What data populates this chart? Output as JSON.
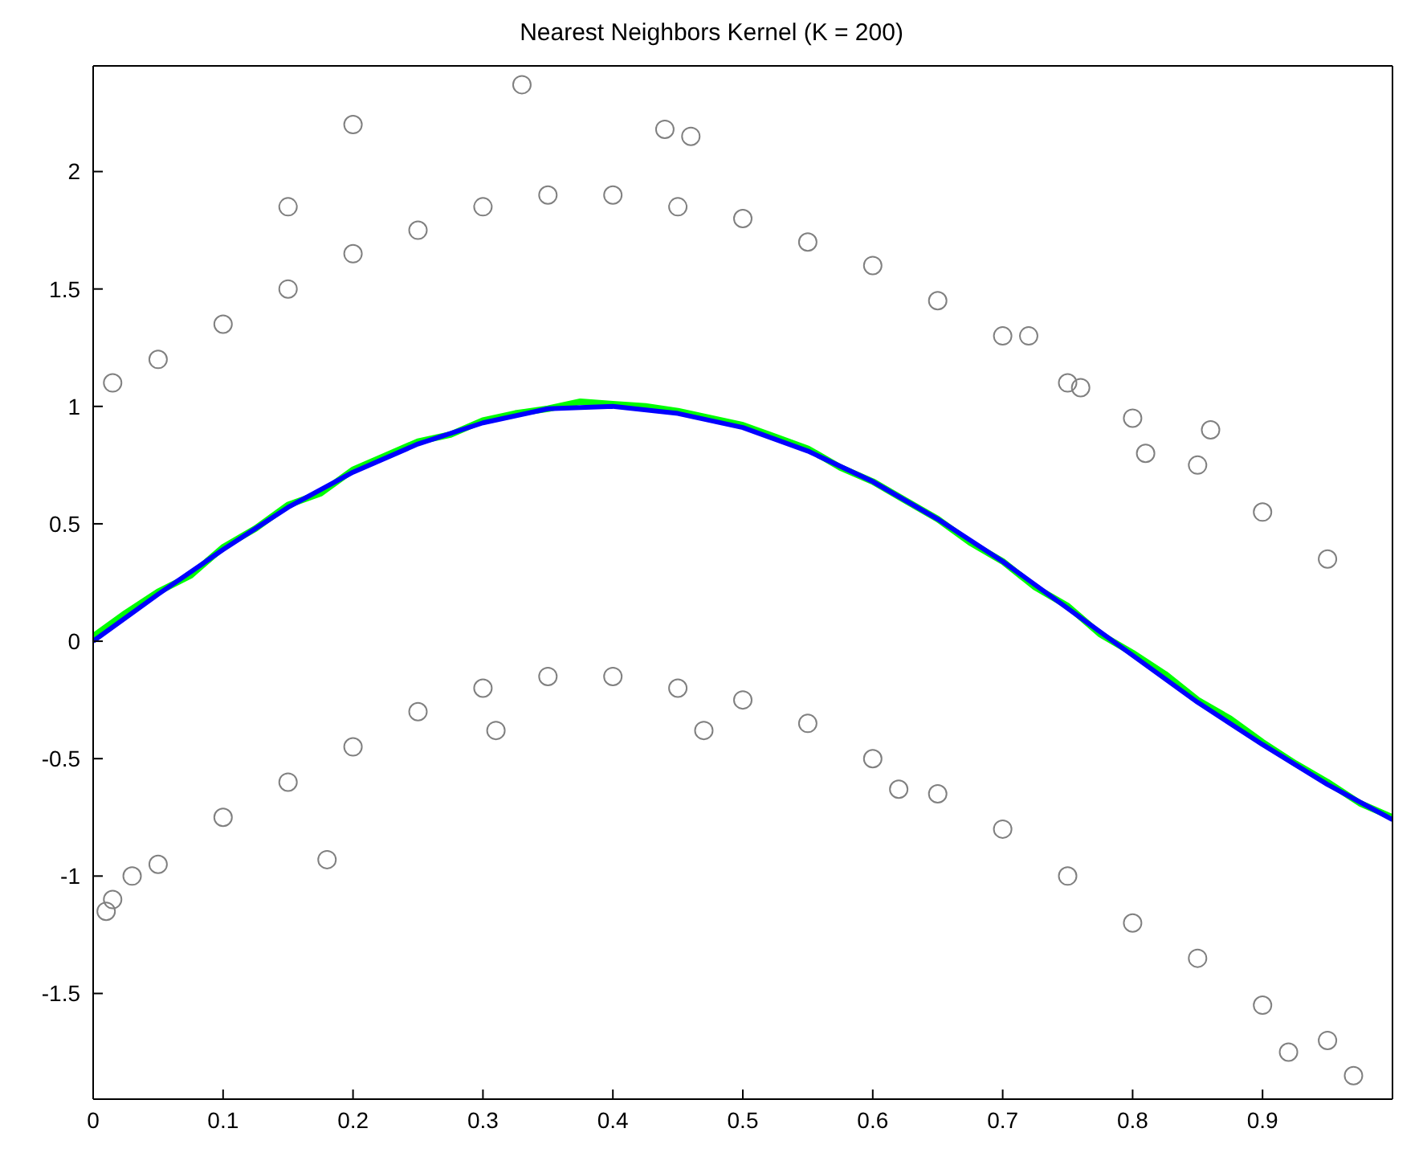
{
  "chart_data": {
    "type": "scatter",
    "title": "Nearest Neighbors Kernel (K = 200)",
    "xlim": [
      0,
      1
    ],
    "xticks": [
      0,
      0.1,
      0.2,
      0.3,
      0.4,
      0.5,
      0.6,
      0.7,
      0.8,
      0.9
    ],
    "ylim": [
      -1.95,
      2.45
    ],
    "yticks": [
      -1.5,
      -1,
      -0.5,
      0,
      0.5,
      1,
      1.5,
      2
    ],
    "marker": "none",
    "series": [
      {
        "marker": "circle",
        "color": "#808080",
        "x": [
          0.015,
          0.05,
          0.1,
          0.15,
          0.2,
          0.25,
          0.3,
          0.35,
          0.4,
          0.45,
          0.5,
          0.55,
          0.6,
          0.65,
          0.7,
          0.75,
          0.8,
          0.85,
          0.9,
          0.95,
          0.015,
          0.05,
          0.1,
          0.15,
          0.2,
          0.25,
          0.3,
          0.35,
          0.4,
          0.45,
          0.5,
          0.55,
          0.6,
          0.65,
          0.7,
          0.75,
          0.8,
          0.85,
          0.9,
          0.95,
          0.2,
          0.33,
          0.44,
          0.46,
          0.15,
          0.18,
          0.31,
          0.47,
          0.62,
          0.76,
          0.86,
          0.92,
          0.97,
          0.01,
          0.03,
          0.72,
          0.81
        ],
        "values": [
          1.1,
          1.2,
          1.35,
          1.5,
          1.65,
          1.75,
          1.85,
          1.9,
          1.9,
          1.85,
          1.8,
          1.7,
          1.6,
          1.45,
          1.3,
          1.1,
          0.95,
          0.75,
          0.55,
          0.35,
          -1.1,
          -0.95,
          -0.75,
          -0.6,
          -0.45,
          -0.3,
          -0.2,
          -0.15,
          -0.15,
          -0.2,
          -0.25,
          -0.35,
          -0.5,
          -0.65,
          -0.8,
          -1,
          -1.2,
          -1.35,
          -1.55,
          -1.7,
          2.2,
          2.37,
          2.18,
          2.15,
          1.85,
          -0.93,
          -0.38,
          -0.38,
          -0.63,
          1.08,
          0.9,
          -1.75,
          -1.85,
          -1.15,
          -1.0,
          1.3,
          0.8
        ]
      },
      {
        "type": "line",
        "color": "#00ff00",
        "x": [
          0,
          0.025,
          0.05,
          0.075,
          0.1,
          0.125,
          0.15,
          0.175,
          0.2,
          0.225,
          0.25,
          0.275,
          0.3,
          0.325,
          0.35,
          0.375,
          0.4,
          0.425,
          0.45,
          0.475,
          0.5,
          0.525,
          0.55,
          0.575,
          0.6,
          0.625,
          0.65,
          0.675,
          0.7,
          0.725,
          0.75,
          0.775,
          0.8,
          0.825,
          0.85,
          0.875,
          0.9,
          0.925,
          0.95,
          0.975,
          1
        ],
        "values": [
          0.02,
          0.12,
          0.21,
          0.28,
          0.4,
          0.48,
          0.58,
          0.63,
          0.73,
          0.79,
          0.85,
          0.88,
          0.94,
          0.97,
          0.99,
          1.02,
          1.01,
          1,
          0.98,
          0.95,
          0.92,
          0.87,
          0.82,
          0.74,
          0.68,
          0.6,
          0.52,
          0.42,
          0.34,
          0.23,
          0.15,
          0.03,
          -0.05,
          -0.14,
          -0.25,
          -0.33,
          -0.43,
          -0.52,
          -0.6,
          -0.69,
          -0.75
        ]
      },
      {
        "type": "line",
        "color": "#0000ff",
        "x": [
          0,
          0.05,
          0.1,
          0.15,
          0.2,
          0.25,
          0.3,
          0.35,
          0.4,
          0.45,
          0.5,
          0.55,
          0.6,
          0.65,
          0.7,
          0.75,
          0.8,
          0.85,
          0.9,
          0.95,
          1
        ],
        "values": [
          0,
          0.2,
          0.39,
          0.57,
          0.72,
          0.84,
          0.93,
          0.99,
          1,
          0.97,
          0.91,
          0.81,
          0.68,
          0.52,
          0.34,
          0.14,
          -0.06,
          -0.26,
          -0.44,
          -0.61,
          -0.76
        ]
      }
    ]
  }
}
